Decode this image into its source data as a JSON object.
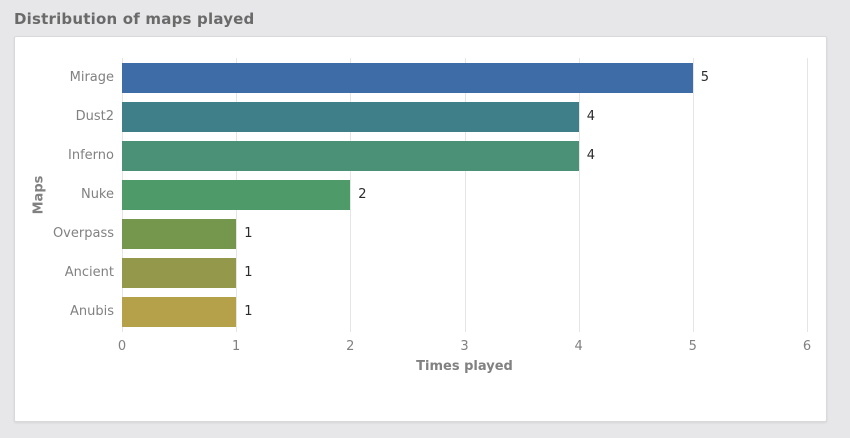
{
  "page": {
    "title": "Distribution of maps played"
  },
  "chart_data": {
    "type": "bar",
    "orientation": "horizontal",
    "title": "Distribution of maps played",
    "categories": [
      "Mirage",
      "Dust2",
      "Inferno",
      "Nuke",
      "Overpass",
      "Ancient",
      "Anubis"
    ],
    "values": [
      5,
      4,
      4,
      2,
      1,
      1,
      1
    ],
    "bar_colors": [
      "#3d6ca6",
      "#3f7f8a",
      "#4a9178",
      "#4e9a69",
      "#74974d",
      "#94984a",
      "#b4a14a"
    ],
    "xlabel": "Times played",
    "ylabel": "Maps",
    "xlim": [
      0,
      6
    ],
    "x_ticks": [
      "0",
      "1",
      "2",
      "3",
      "4",
      "5",
      "6"
    ],
    "grid": "vertical-only",
    "legend": "none",
    "value_labels_position": "outside-end"
  },
  "colors": {
    "page_bg": "#e7e7e9",
    "card_bg": "#ffffff",
    "card_border": "#d9d9db",
    "gridline": "#e5e5e5",
    "title_text": "#6a6a6a",
    "tick_text": "#818181",
    "value_text": "#2b2b2b"
  }
}
